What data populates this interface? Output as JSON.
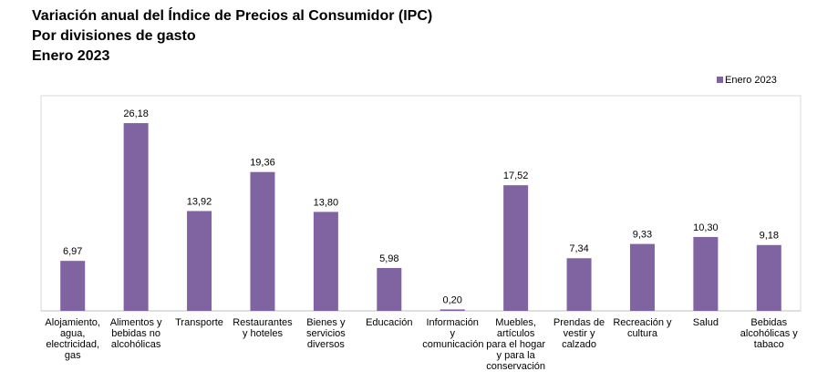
{
  "chart_data": {
    "type": "bar",
    "title": "Variación anual del Índice de Precios al Consumidor (IPC)",
    "subtitles": [
      "Por divisiones de gasto",
      "Enero 2023"
    ],
    "categories": [
      "Alojamiento, agua, electricidad, gas",
      "Alimentos y bebidas no alcohólicas",
      "Transporte",
      "Restaurantes y hoteles",
      "Bienes y servicios diversos",
      "Educación",
      "Información y comunicación",
      "Muebles, artículos para el hogar y para la conservación",
      "Prendas de vestir y calzado",
      "Recreación y cultura",
      "Salud",
      "Bebidas alcohólicas y tabaco"
    ],
    "series": [
      {
        "name": "Enero 2023",
        "color": "#8064a2",
        "values": [
          6.97,
          26.18,
          13.92,
          19.36,
          13.8,
          5.98,
          0.2,
          17.52,
          7.34,
          9.33,
          10.3,
          9.18
        ],
        "value_labels": [
          "6,97",
          "26,18",
          "13,92",
          "19,36",
          "13,80",
          "5,98",
          "0,20",
          "17,52",
          "7,34",
          "9,33",
          "10,30",
          "9,18"
        ]
      }
    ],
    "ylim": [
      0,
      30
    ],
    "grid": false,
    "legend": "top-right"
  }
}
